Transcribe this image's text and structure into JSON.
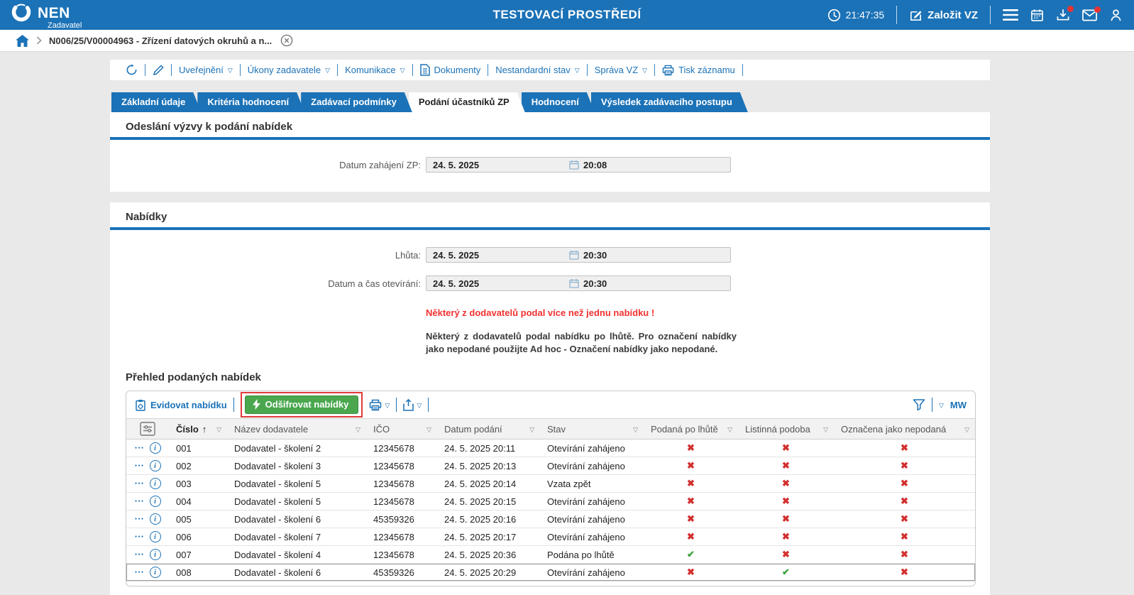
{
  "colors": {
    "accent": "#1b72b7",
    "success": "#3da33f",
    "danger": "#d32f2f",
    "button_green": "#4aa74e",
    "annotation_red": "#e03a3a"
  },
  "header": {
    "logo_text": "NEN",
    "logo_sub": "Zadavatel",
    "environment": "TESTOVACÍ PROSTŘEDÍ",
    "clock": "21:47:35",
    "create_button": "Založit VZ"
  },
  "breadcrumb": {
    "item": "N006/25/V00004963 - Zřízení datových okruhů a n..."
  },
  "menubar": {
    "leading_icons": [
      "history-icon",
      "edit-pencil-icon"
    ],
    "items": [
      {
        "label": "Uveřejnění",
        "dropdown": true,
        "icon": ""
      },
      {
        "label": "Úkony zadavatele",
        "dropdown": true,
        "icon": ""
      },
      {
        "label": "Komunikace",
        "dropdown": true,
        "icon": ""
      },
      {
        "label": "Dokumenty",
        "dropdown": false,
        "icon": "document"
      },
      {
        "label": "Nestandardní stav",
        "dropdown": true,
        "icon": ""
      },
      {
        "label": "Správa VZ",
        "dropdown": true,
        "icon": ""
      },
      {
        "label": "Tisk záznamu",
        "dropdown": false,
        "icon": "printer"
      }
    ]
  },
  "tabs": [
    {
      "label": "Základní údaje",
      "active": false
    },
    {
      "label": "Kritéria hodnocení",
      "active": false
    },
    {
      "label": "Zadávací podmínky",
      "active": false
    },
    {
      "label": "Podání účastníků ZP",
      "active": true
    },
    {
      "label": "Hodnocení",
      "active": false
    },
    {
      "label": "Výsledek zadávacího postupu",
      "active": false
    }
  ],
  "section_invitation": {
    "title": "Odeslání výzvy k podání nabídek",
    "field_label": "Datum zahájení ZP:",
    "date": "24. 5. 2025",
    "time": "20:08"
  },
  "section_offers": {
    "title": "Nabídky",
    "deadline_label": "Lhůta:",
    "deadline_date": "24. 5. 2025",
    "deadline_time": "20:30",
    "opening_label": "Datum a čas otevírání:",
    "opening_date": "24. 5. 2025",
    "opening_time": "20:30",
    "warning_red": "Některý z dodavatelů podal více než jednu nabídku !",
    "warning_note": "Některý z dodavatelů podal nabídku po lhůtě. Pro označení nabídky jako nepodané použijte Ad hoc - Označení nabídky jako nepodané."
  },
  "offers_table": {
    "title": "Přehled podaných nabídek",
    "toolbar": {
      "register": "Evidovat nabídku",
      "decrypt": "Odšifrovat nabídky",
      "user_code": "MW"
    },
    "columns": [
      {
        "key": "cislo",
        "label": "Číslo",
        "sorted": "asc"
      },
      {
        "key": "nazev",
        "label": "Název dodavatele",
        "sorted": ""
      },
      {
        "key": "ico",
        "label": "IČO",
        "sorted": ""
      },
      {
        "key": "datum",
        "label": "Datum podání",
        "sorted": ""
      },
      {
        "key": "stav",
        "label": "Stav",
        "sorted": ""
      },
      {
        "key": "po_lhute",
        "label": "Podaná po lhůtě",
        "sorted": ""
      },
      {
        "key": "listinna",
        "label": "Listinná podoba",
        "sorted": ""
      },
      {
        "key": "nepodana",
        "label": "Označena jako nepodaná",
        "sorted": ""
      }
    ],
    "rows": [
      {
        "cislo": "001",
        "nazev": "Dodavatel - školení 2",
        "ico": "12345678",
        "datum": "24. 5. 2025 20:11",
        "stav": "Otevírání zahájeno",
        "po_lhute": false,
        "listinna": false,
        "nepodana": false,
        "selected": false
      },
      {
        "cislo": "002",
        "nazev": "Dodavatel - školení 3",
        "ico": "12345678",
        "datum": "24. 5. 2025 20:13",
        "stav": "Otevírání zahájeno",
        "po_lhute": false,
        "listinna": false,
        "nepodana": false,
        "selected": false
      },
      {
        "cislo": "003",
        "nazev": "Dodavatel - školení 5",
        "ico": "12345678",
        "datum": "24. 5. 2025 20:14",
        "stav": "Vzata zpět",
        "po_lhute": false,
        "listinna": false,
        "nepodana": false,
        "selected": false
      },
      {
        "cislo": "004",
        "nazev": "Dodavatel - školení 5",
        "ico": "12345678",
        "datum": "24. 5. 2025 20:15",
        "stav": "Otevírání zahájeno",
        "po_lhute": false,
        "listinna": false,
        "nepodana": false,
        "selected": false
      },
      {
        "cislo": "005",
        "nazev": "Dodavatel - školení 6",
        "ico": "45359326",
        "datum": "24. 5. 2025 20:16",
        "stav": "Otevírání zahájeno",
        "po_lhute": false,
        "listinna": false,
        "nepodana": false,
        "selected": false
      },
      {
        "cislo": "006",
        "nazev": "Dodavatel - školení 7",
        "ico": "12345678",
        "datum": "24. 5. 2025 20:17",
        "stav": "Otevírání zahájeno",
        "po_lhute": false,
        "listinna": false,
        "nepodana": false,
        "selected": false
      },
      {
        "cislo": "007",
        "nazev": "Dodavatel - školení 4",
        "ico": "12345678",
        "datum": "24. 5. 2025 20:36",
        "stav": "Podána po lhůtě",
        "po_lhute": true,
        "listinna": false,
        "nepodana": false,
        "selected": false
      },
      {
        "cislo": "008",
        "nazev": "Dodavatel - školení 6",
        "ico": "45359326",
        "datum": "24. 5. 2025 20:29",
        "stav": "Otevírání zahájeno",
        "po_lhute": false,
        "listinna": true,
        "nepodana": false,
        "selected": true
      }
    ]
  }
}
